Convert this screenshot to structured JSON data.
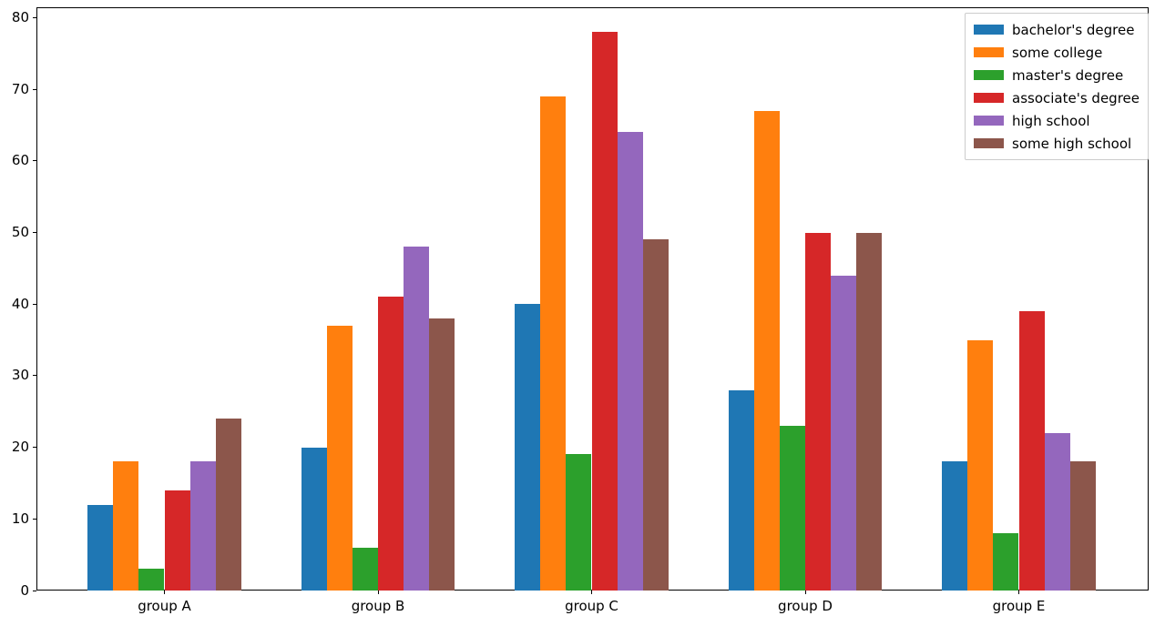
{
  "chart_data": {
    "type": "bar",
    "title": "",
    "xlabel": "",
    "ylabel": "",
    "categories": [
      "group A",
      "group B",
      "group C",
      "group D",
      "group E"
    ],
    "series": [
      {
        "name": "bachelor's degree",
        "color": "#1f77b4",
        "values": [
          12,
          20,
          40,
          28,
          18
        ]
      },
      {
        "name": "some college",
        "color": "#ff7f0e",
        "values": [
          18,
          37,
          69,
          67,
          35
        ]
      },
      {
        "name": "master's degree",
        "color": "#2ca02c",
        "values": [
          3,
          6,
          19,
          23,
          8
        ]
      },
      {
        "name": "associate's degree",
        "color": "#d62728",
        "values": [
          14,
          41,
          78,
          50,
          39
        ]
      },
      {
        "name": "high school",
        "color": "#9467bd",
        "values": [
          18,
          48,
          64,
          44,
          22
        ]
      },
      {
        "name": "some high school",
        "color": "#8c564b",
        "values": [
          24,
          38,
          49,
          50,
          18
        ]
      }
    ],
    "yticks": [
      0,
      10,
      20,
      30,
      40,
      50,
      60,
      70,
      80
    ],
    "ylim": [
      0,
      81.4
    ],
    "xlim": [
      -0.6,
      4.6
    ],
    "grid": false,
    "legend_position": "upper right",
    "spine_color": "#000000",
    "legend_border_color": "#cccccc",
    "background_color": "#ffffff"
  }
}
